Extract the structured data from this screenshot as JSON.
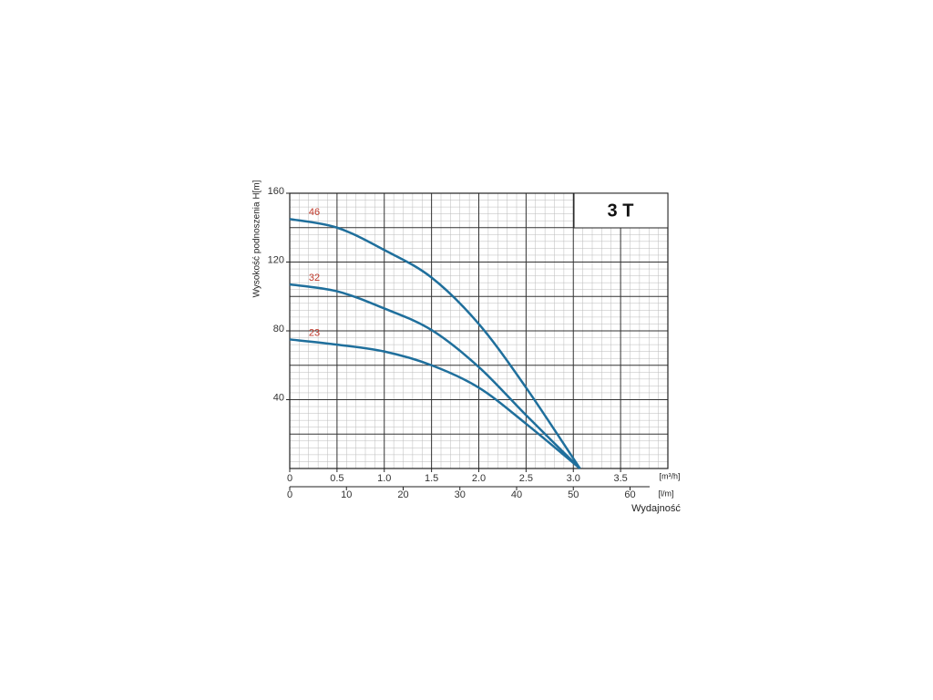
{
  "chart_data": {
    "type": "line",
    "title": "3 T",
    "y_label": "Wysokość podnoszenia H[m]",
    "x_unit": "[m³/h]",
    "x2_unit": "[l/m]",
    "x_label": "Wydajność",
    "x": [
      0,
      0.5,
      1,
      1.5,
      2,
      2.5,
      3.07
    ],
    "series": [
      {
        "name": "46",
        "color": "#1f6f9c",
        "values": [
          145,
          140,
          127,
          111,
          84,
          47,
          0
        ]
      },
      {
        "name": "32",
        "color": "#1f6f9c",
        "values": [
          107,
          103,
          93,
          80.5,
          59,
          31,
          0
        ]
      },
      {
        "name": "23",
        "color": "#1f6f9c",
        "values": [
          75,
          72,
          68,
          60,
          47,
          26,
          0
        ]
      }
    ],
    "xlim": [
      0,
      4
    ],
    "ylim": [
      0,
      160
    ],
    "xticks": [
      0,
      0.5,
      {
        "value": 1,
        "label": "1.0"
      },
      1.5,
      {
        "value": 2,
        "label": "2.0"
      },
      2.5,
      {
        "value": 3,
        "label": "3.0"
      },
      3.5
    ],
    "yticks": [
      40,
      80,
      120,
      160
    ],
    "x2lim": [
      0,
      66.67
    ],
    "x2ticks": [
      0,
      10,
      20,
      30,
      40,
      50,
      60
    ],
    "label_color": "#c0392b",
    "grid": true
  }
}
